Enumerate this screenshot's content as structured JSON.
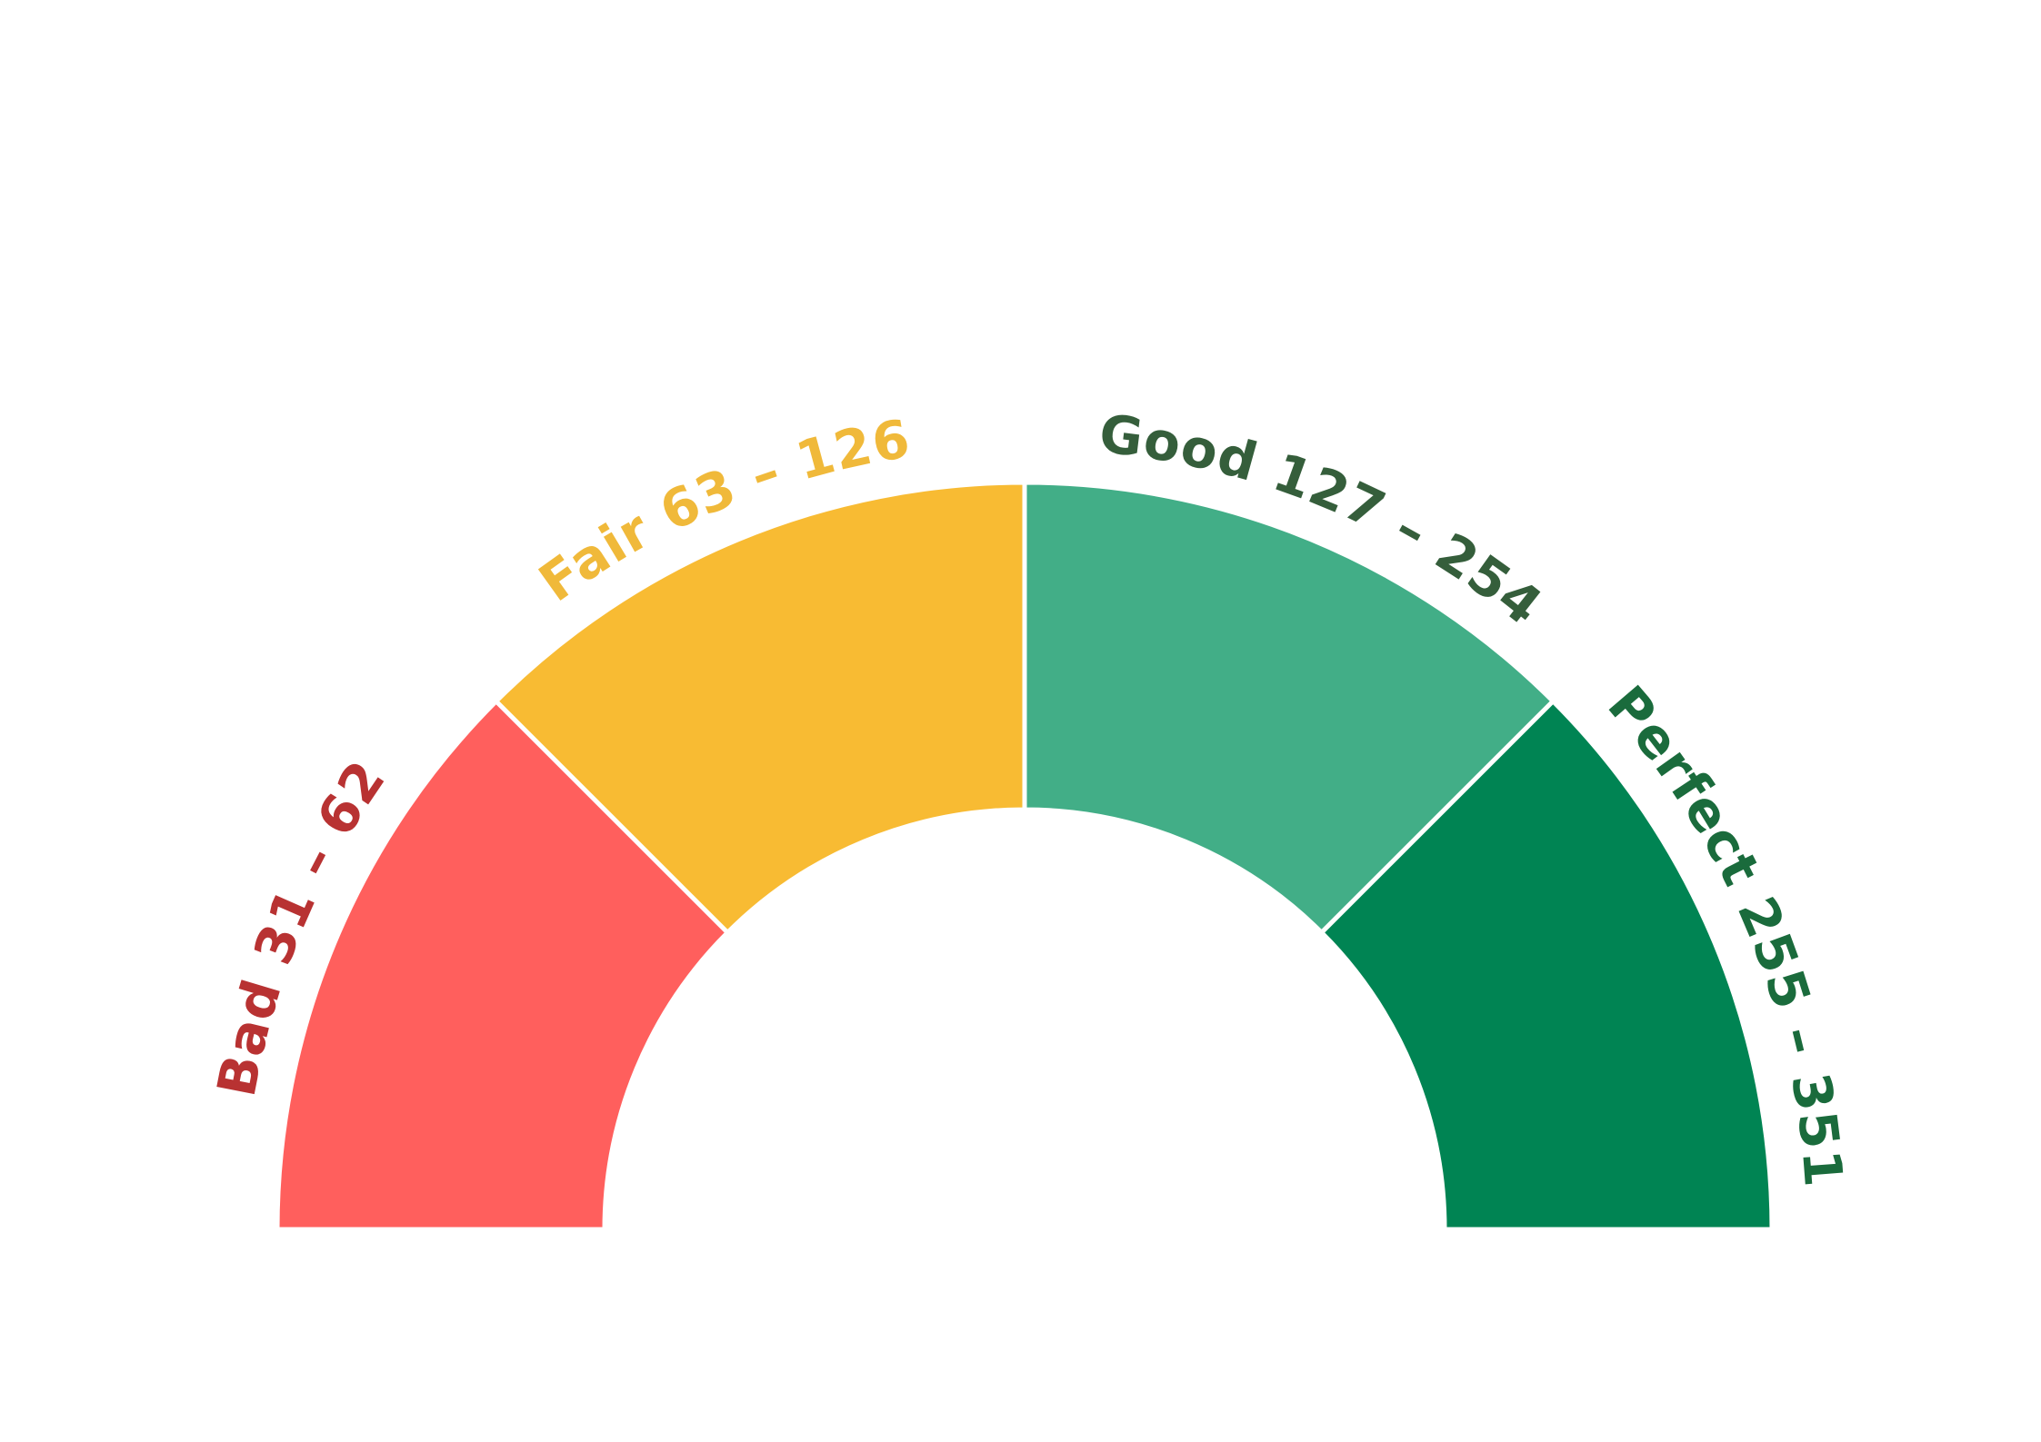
{
  "chart_data": {
    "type": "gauge",
    "title": "",
    "min": 0,
    "max": 4,
    "segments": [
      {
        "label": "Bad 31 – 62",
        "name": "Bad",
        "low": 31,
        "high": 62,
        "color": "#FF5F5D",
        "label_color": "#B83232"
      },
      {
        "label": "Fair 63 – 126",
        "name": "Fair",
        "low": 63,
        "high": 126,
        "color": "#F8BB33",
        "label_color": "#F0B93A"
      },
      {
        "label": "Good 127 – 254",
        "name": "Good",
        "low": 127,
        "high": 254,
        "color": "#42AE87",
        "label_color": "#355E3B"
      },
      {
        "label": "Perfect 255 – 351",
        "name": "Perfect",
        "low": 255,
        "high": 351,
        "color": "#008453",
        "label_color": "#1A6B3C"
      }
    ],
    "legend": false,
    "grid": false
  }
}
